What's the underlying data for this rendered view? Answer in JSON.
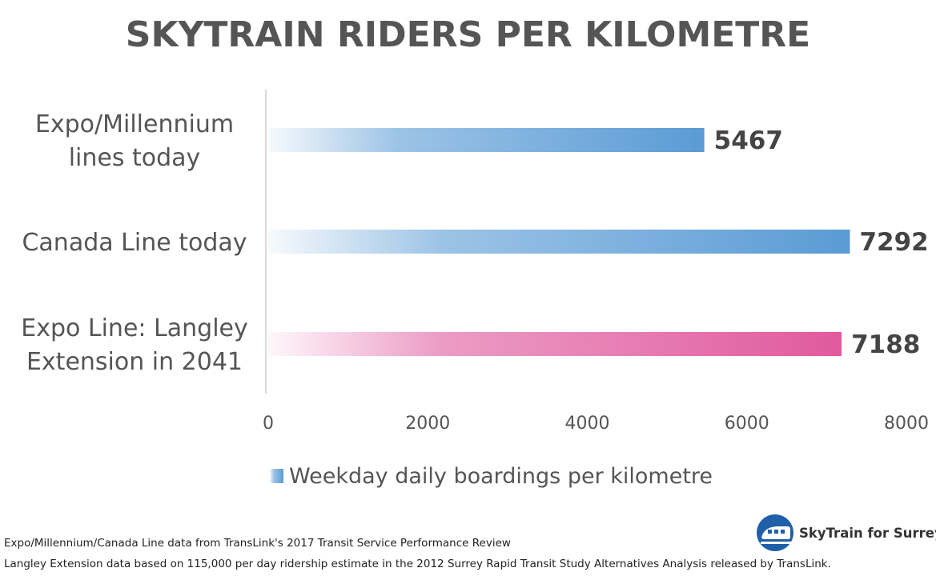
{
  "chart_data": {
    "type": "bar",
    "orientation": "horizontal",
    "title": "SKYTRAIN RIDERS PER KILOMETRE",
    "categories": [
      [
        "Expo/Millennium",
        "lines today"
      ],
      [
        "Canada Line today"
      ],
      [
        "Expo Line: Langley",
        "Extension in 2041"
      ]
    ],
    "series": [
      {
        "name": "Weekday daily boardings per kilometre",
        "values": [
          5467,
          7292,
          7188
        ]
      }
    ],
    "value_labels": [
      "5467",
      "7292",
      "7188"
    ],
    "bar_colors": [
      "#5a9bd5",
      "#5a9bd5",
      "#e05a9e"
    ],
    "xlim": [
      0,
      8000
    ],
    "xticks": [
      "0",
      "2000",
      "4000",
      "6000",
      "8000"
    ],
    "xlabel": "",
    "ylabel": "",
    "grid": false,
    "legend_position": "bottom"
  },
  "footnotes": [
    "Expo/Millennium/Canada Line data from TransLink's 2017 Transit Service Performance Review",
    "Langley Extension data based on 115,000 per day ridership estimate in the 2012 Surrey Rapid Transit Study Alternatives Analysis released by TransLink."
  ],
  "logo": {
    "text": "SkyTrain for Surrey",
    "icon": "skytrain-train-icon",
    "color": "#1f5fa8"
  }
}
